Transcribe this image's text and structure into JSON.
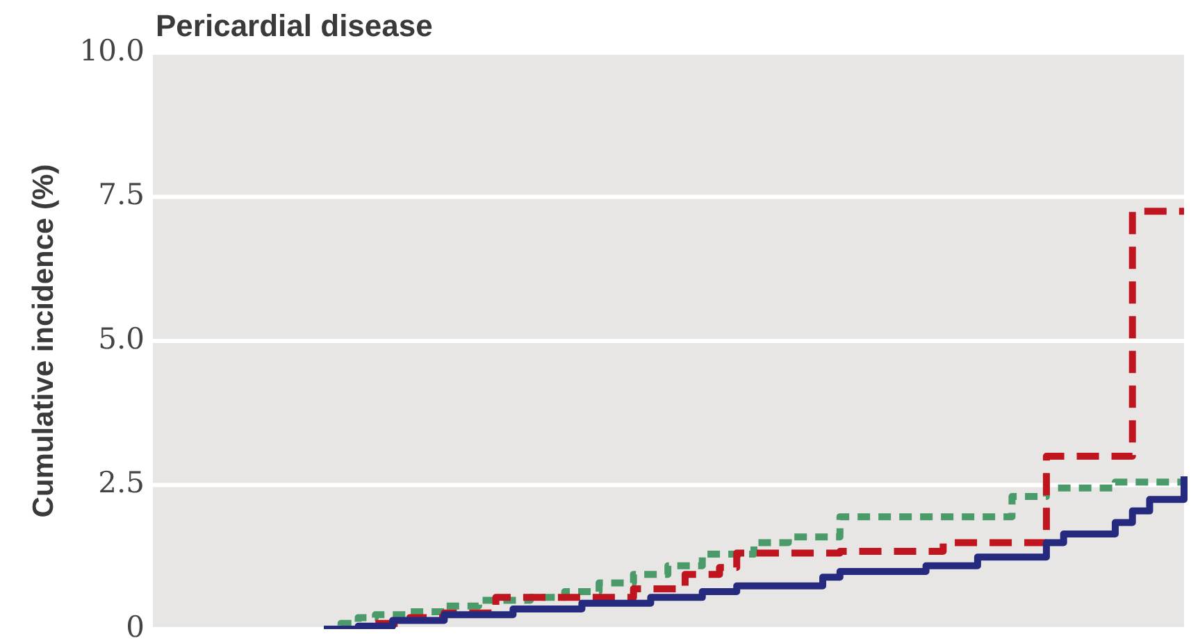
{
  "chart_data": {
    "type": "step",
    "title": "Pericardial disease",
    "ylabel": "Cumulative incidence (%)",
    "categories": [
      null,
      null,
      null,
      null,
      null,
      null,
      null,
      null,
      null,
      null,
      null,
      null,
      null,
      null,
      null,
      null,
      null,
      null,
      null,
      null,
      null,
      null,
      null,
      null,
      null,
      null,
      null,
      null,
      null,
      null,
      null,
      null,
      null,
      null,
      null,
      null,
      null,
      null,
      null,
      null,
      null,
      null,
      null,
      null,
      null,
      null,
      null,
      null,
      null,
      null,
      null
    ],
    "ylim": [
      0,
      10
    ],
    "yticks": [
      0,
      2.5,
      {
        "value": 5,
        "label": "5.0"
      },
      {
        "value": 7.5,
        "label": "7.5"
      },
      {
        "value": 10,
        "label": "10.0"
      }
    ],
    "grid": "y",
    "legend": false,
    "marker": "none",
    "series": [
      {
        "color": "#262a7f",
        "line_style": "solid",
        "values": [
          0,
          0,
          0.05,
          0.05,
          0.15,
          0.15,
          0.15,
          0.25,
          0.25,
          0.25,
          0.25,
          0.35,
          0.35,
          0.35,
          0.35,
          0.45,
          0.45,
          0.45,
          0.45,
          0.55,
          0.55,
          0.55,
          0.65,
          0.65,
          0.75,
          0.75,
          0.75,
          0.75,
          0.75,
          0.9,
          1.0,
          1.0,
          1.0,
          1.0,
          1.0,
          1.1,
          1.1,
          1.1,
          1.25,
          1.25,
          1.25,
          1.25,
          1.5,
          1.65,
          1.65,
          1.65,
          1.85,
          2.05,
          2.25,
          2.25,
          2.65
        ]
      },
      {
        "color": "#c0141e",
        "line_style": "dashed",
        "values": [
          null,
          null,
          null,
          0.1,
          0.1,
          0.2,
          0.2,
          0.28,
          0.28,
          0.28,
          0.55,
          0.55,
          0.55,
          0.55,
          0.55,
          0.55,
          0.55,
          0.55,
          0.7,
          0.7,
          0.7,
          0.95,
          0.95,
          1.07,
          1.32,
          1.32,
          1.32,
          1.32,
          1.32,
          1.32,
          1.35,
          1.35,
          1.35,
          1.35,
          1.35,
          1.35,
          1.5,
          1.5,
          1.5,
          1.5,
          1.5,
          1.5,
          3.0,
          3.0,
          3.0,
          3.0,
          3.0,
          7.25,
          7.25,
          7.25,
          7.25
        ]
      },
      {
        "color": "#4a9a6a",
        "line_style": "dotted",
        "values": [
          0,
          0.1,
          0.2,
          0.25,
          0.25,
          0.3,
          0.3,
          0.4,
          0.4,
          0.5,
          0.5,
          0.5,
          0.55,
          0.55,
          0.65,
          0.65,
          0.8,
          0.8,
          0.95,
          0.95,
          1.1,
          1.1,
          1.3,
          1.3,
          1.3,
          1.5,
          1.5,
          1.6,
          1.6,
          1.6,
          1.95,
          1.95,
          1.95,
          1.95,
          1.95,
          1.95,
          1.95,
          1.95,
          1.95,
          1.95,
          2.3,
          2.3,
          2.45,
          2.45,
          2.45,
          2.45,
          2.55,
          2.55,
          2.55,
          2.55,
          2.6
        ]
      }
    ]
  }
}
